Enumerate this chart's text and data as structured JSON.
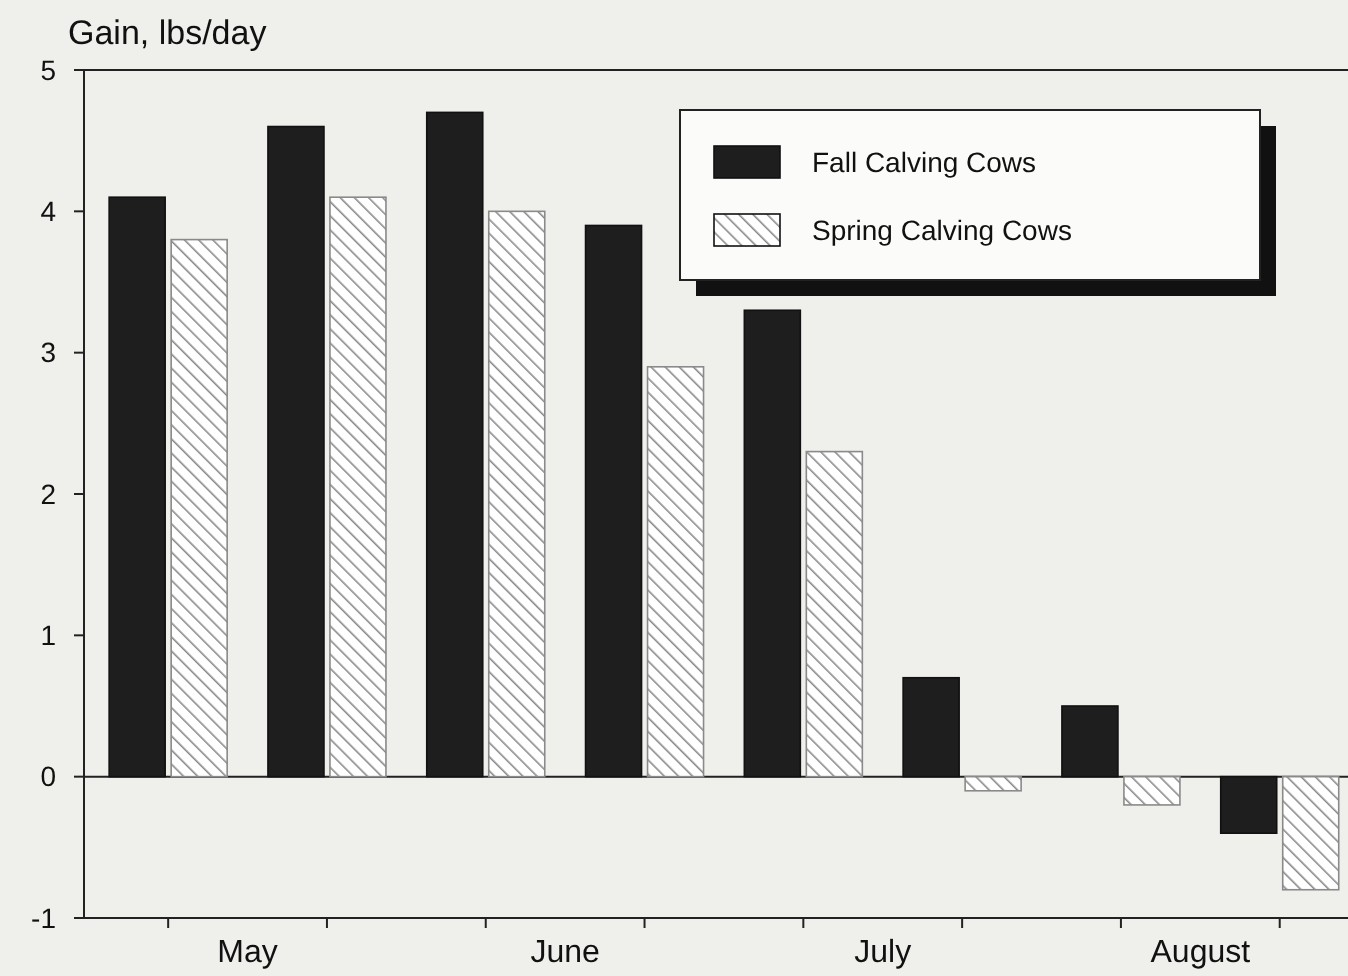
{
  "chart_data": {
    "type": "bar",
    "ylabel": "Gain, lbs/day",
    "categories": [
      null,
      "May",
      null,
      null,
      null,
      "June",
      null,
      null,
      null,
      "July",
      null,
      null,
      null,
      "August",
      null,
      null
    ],
    "series": [
      {
        "name": "Fall Calving Cows",
        "color": "#1e1e1e",
        "values": [
          4.1,
          null,
          4.6,
          null,
          4.7,
          null,
          3.9,
          null,
          3.3,
          null,
          0.7,
          null,
          0.5,
          null,
          -0.4,
          null
        ]
      },
      {
        "name": "Spring Calving Cows",
        "color": "#8a8a8a",
        "values": [
          3.8,
          null,
          4.1,
          null,
          4.0,
          null,
          2.9,
          null,
          2.3,
          null,
          -0.1,
          null,
          -0.2,
          null,
          -0.8,
          null
        ]
      }
    ],
    "ylim": [
      -1,
      5
    ],
    "yticks": [
      -1,
      0,
      1,
      2,
      3,
      4,
      5
    ],
    "legend": "top right"
  }
}
